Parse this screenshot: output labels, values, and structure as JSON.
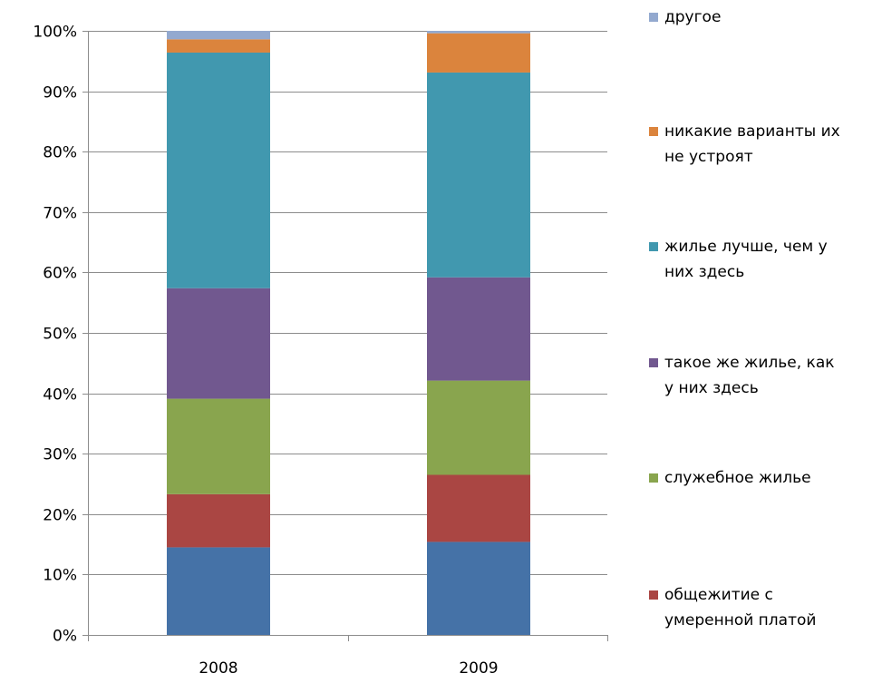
{
  "chart_data": {
    "type": "bar",
    "stacked": true,
    "percent": true,
    "title": "",
    "xlabel": "",
    "ylabel": "",
    "ylim": [
      0,
      100
    ],
    "y_ticks": [
      "0%",
      "10%",
      "20%",
      "30%",
      "40%",
      "50%",
      "60%",
      "70%",
      "80%",
      "90%",
      "100%"
    ],
    "categories": [
      "2008",
      "2009"
    ],
    "grid": true,
    "legend_position": "right",
    "series": [
      {
        "name": "",
        "color": "#4572A7",
        "values": [
          14.5,
          15.4
        ]
      },
      {
        "name": "общежитие с умеренной платой",
        "color": "#AA4643",
        "values": [
          8.8,
          11.1
        ]
      },
      {
        "name": "служебное жилье",
        "color": "#89A54E",
        "values": [
          15.8,
          15.6
        ]
      },
      {
        "name": "такое же жилье, как у них здесь",
        "color": "#71588F",
        "values": [
          18.3,
          17.1
        ]
      },
      {
        "name": "жилье лучше, чем у них здесь",
        "color": "#4198AF",
        "values": [
          39.0,
          33.9
        ]
      },
      {
        "name": "никакие варианты их не устроят",
        "color": "#DB843D",
        "values": [
          2.2,
          6.5
        ]
      },
      {
        "name": "другое",
        "color": "#93A9CF",
        "values": [
          1.4,
          0.4
        ]
      }
    ],
    "legend": [
      {
        "lines": [
          "другое"
        ],
        "color": "#93A9CF"
      },
      {
        "lines": [
          "никакие варианты их",
          "не устроят"
        ],
        "color": "#DB843D"
      },
      {
        "lines": [
          "жилье лучше, чем у",
          "них здесь"
        ],
        "color": "#4198AF"
      },
      {
        "lines": [
          "такое же жилье, как",
          "у них здесь"
        ],
        "color": "#71588F"
      },
      {
        "lines": [
          "служебное жилье"
        ],
        "color": "#89A54E"
      },
      {
        "lines": [
          "общежитие с",
          "умеренной платой"
        ],
        "color": "#AA4643"
      }
    ]
  }
}
